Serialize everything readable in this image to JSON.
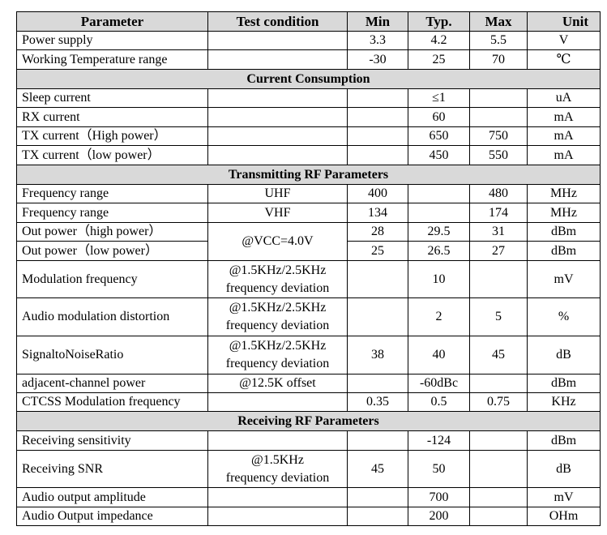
{
  "table": {
    "header": [
      "Parameter",
      "Test condition",
      "Min",
      "Typ.",
      "Max",
      "Unit"
    ],
    "rows": [
      {
        "cells": [
          "Power supply",
          null,
          "3.3",
          "4.2",
          "5.5",
          "V"
        ]
      },
      {
        "cells": [
          "Working Temperature range",
          null,
          "-30",
          "25",
          "70",
          "℃"
        ]
      },
      {
        "section": "Current Consumption"
      },
      {
        "cells": [
          "Sleep current",
          null,
          null,
          "≤1",
          null,
          "uA"
        ]
      },
      {
        "cells": [
          "RX current",
          null,
          null,
          "60",
          null,
          "mA"
        ]
      },
      {
        "cells": [
          "TX current（High power）",
          null,
          null,
          "650",
          "750",
          "mA"
        ]
      },
      {
        "cells": [
          "TX current（low power）",
          null,
          null,
          "450",
          "550",
          "mA"
        ]
      },
      {
        "section": "Transmitting RF Parameters"
      },
      {
        "cells": [
          "Frequency range",
          "UHF",
          "400",
          null,
          "480",
          "MHz"
        ]
      },
      {
        "cells": [
          "Frequency range",
          "VHF",
          "134",
          null,
          "174",
          "MHz"
        ]
      },
      {
        "cells": [
          "Out power（high power）",
          "@VCC=4.0V",
          "28",
          "29.5",
          "31",
          "dBm"
        ]
      },
      {
        "cells": [
          "Out power（low power）",
          null,
          "25",
          "26.5",
          "27",
          "dBm"
        ]
      },
      {
        "cells": [
          "Modulation frequency",
          "@1.5KHz/2.5KHz\nfrequency deviation",
          null,
          "10",
          null,
          "mV"
        ]
      },
      {
        "cells": [
          "Audio modulation distortion",
          "@1.5KHz/2.5KHz\nfrequency deviation",
          null,
          "2",
          "5",
          "%"
        ]
      },
      {
        "cells": [
          "SignaltoNoiseRatio",
          "@1.5KHz/2.5KHz\nfrequency deviation",
          "38",
          "40",
          "45",
          "dB"
        ]
      },
      {
        "cells": [
          "adjacent-channel power",
          "@12.5K offset",
          null,
          "-60dBc",
          null,
          "dBm"
        ]
      },
      {
        "cells": [
          "CTCSS Modulation frequency",
          null,
          "0.35",
          "0.5",
          "0.75",
          "KHz"
        ]
      },
      {
        "section": "Receiving RF Parameters"
      },
      {
        "cells": [
          "Receiving sensitivity",
          null,
          null,
          "-124",
          null,
          "dBm"
        ]
      },
      {
        "cells": [
          "Receiving SNR",
          "@1.5KHz\nfrequency deviation",
          "45",
          "50",
          null,
          "dB"
        ]
      },
      {
        "cells": [
          "Audio output amplitude",
          null,
          null,
          "700",
          null,
          "mV"
        ]
      },
      {
        "cells": [
          "Audio Output impedance",
          null,
          null,
          "200",
          null,
          "OHm"
        ]
      }
    ]
  }
}
